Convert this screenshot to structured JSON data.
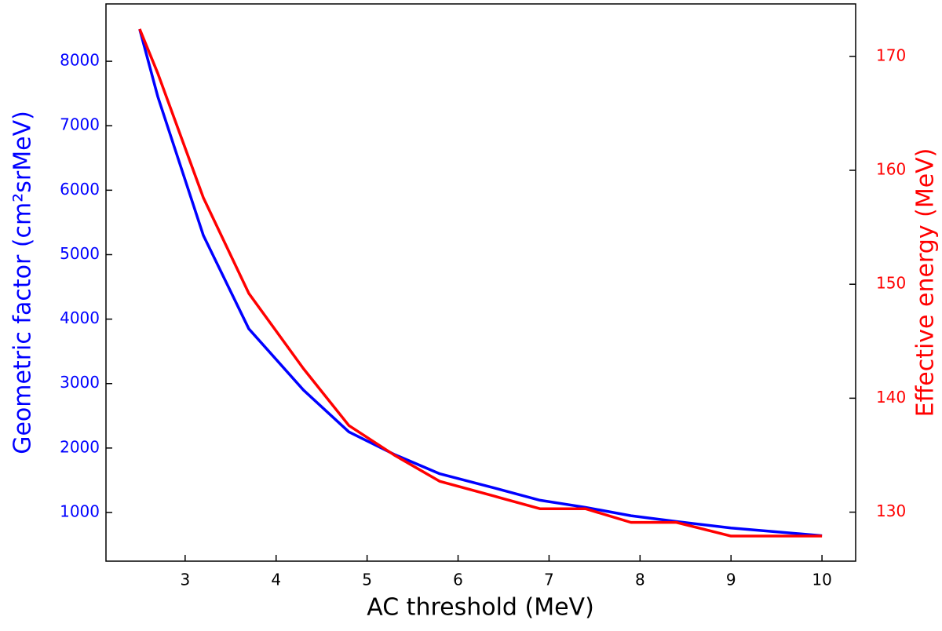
{
  "chart_data": {
    "type": "line",
    "x_label": "AC threshold (MeV)",
    "y_label": "Geometric factor (cm²srMeV)",
    "y2_label": "Effective energy (MeV)",
    "x": [
      2.5,
      2.7,
      3.2,
      3.7,
      4.3,
      4.8,
      5.3,
      5.8,
      6.4,
      6.9,
      7.4,
      7.9,
      8.4,
      9.0,
      10.0
    ],
    "series": [
      {
        "name": "Geometric factor",
        "color": "#0000ff",
        "axis": "y",
        "values": [
          8500,
          7450,
          5300,
          3850,
          2900,
          2250,
          1900,
          1600,
          1380,
          1190,
          1080,
          950,
          860,
          760,
          640
        ]
      },
      {
        "name": "Effective energy",
        "color": "#ff0000",
        "axis": "y2",
        "values": [
          172.4,
          168.5,
          157.6,
          149.2,
          142.6,
          137.6,
          135.0,
          132.7,
          131.4,
          130.3,
          130.3,
          129.1,
          129.1,
          127.9,
          127.9
        ]
      }
    ],
    "xlim": [
      2.13,
      10.37
    ],
    "xticks": [
      3,
      4,
      5,
      6,
      7,
      8,
      9,
      10
    ],
    "ylim": [
      245,
      8890
    ],
    "yticks": [
      1000,
      2000,
      3000,
      4000,
      5000,
      6000,
      7000,
      8000
    ],
    "y2lim": [
      125.7,
      174.6
    ],
    "y2ticks": [
      130,
      140,
      150,
      160,
      170
    ]
  }
}
